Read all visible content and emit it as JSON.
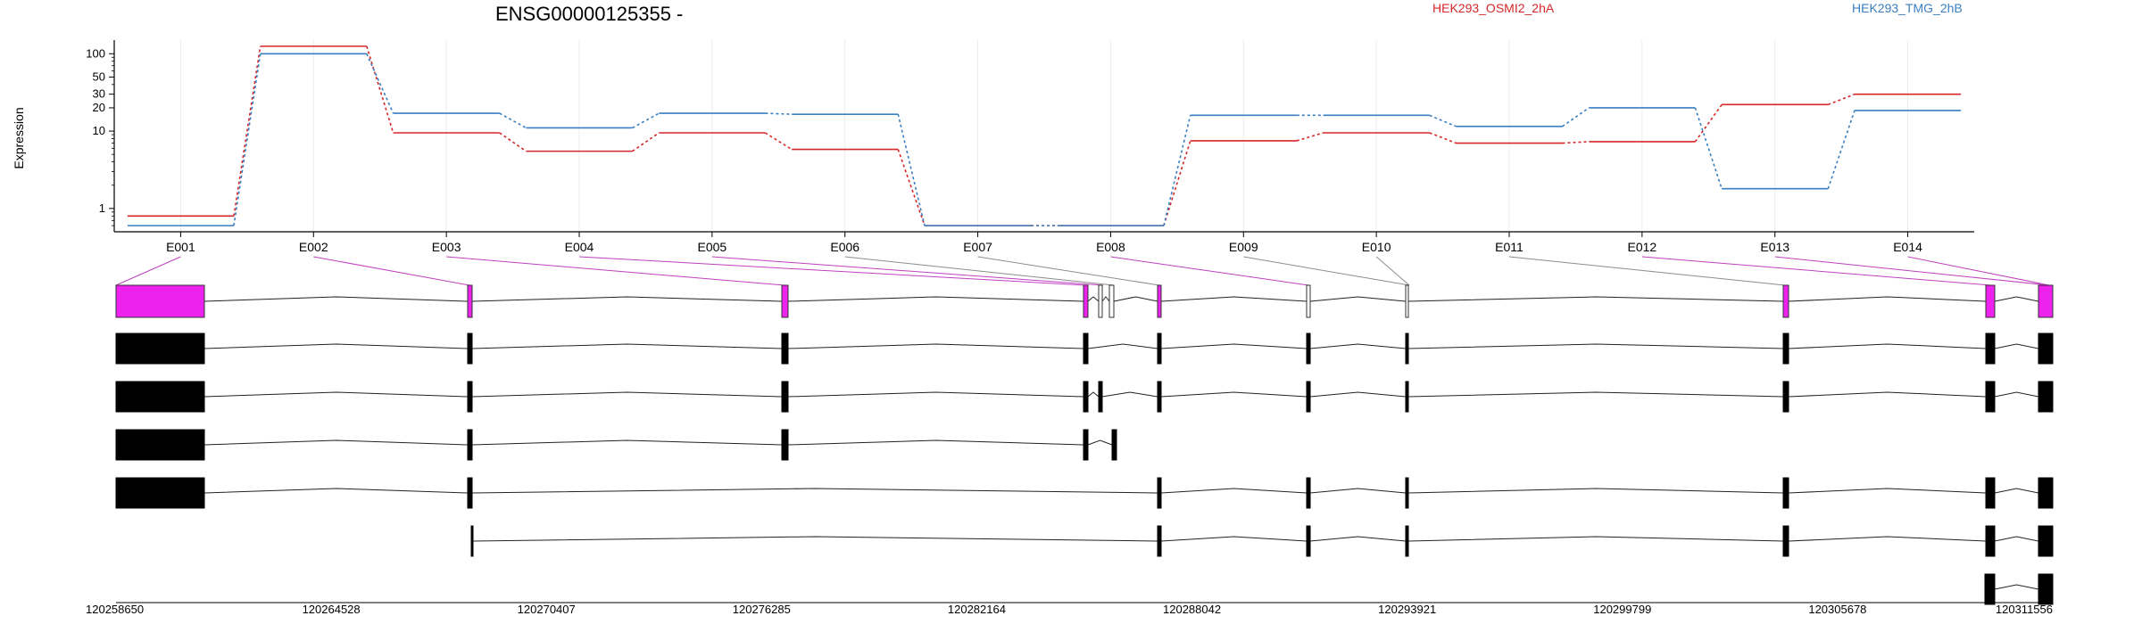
{
  "chart_data": {
    "type": "line",
    "title": "ENSG00000125355 -",
    "ylabel": "Expression",
    "yscale": "log",
    "ylim": [
      0.5,
      150
    ],
    "yticks": [
      1,
      10,
      20,
      30,
      50,
      100
    ],
    "ytick_labels": [
      "1",
      "10",
      "20",
      "30",
      "50",
      "100"
    ],
    "grid": "vertical-light",
    "legend_position": "top",
    "categories": [
      "E001",
      "E002",
      "E003",
      "E004",
      "E005",
      "E006",
      "E007",
      "E008",
      "E009",
      "E010",
      "E011",
      "E012",
      "E013",
      "E014"
    ],
    "series": [
      {
        "name": "HEK293_OSMI2_2hA",
        "color": "#d62728",
        "values": [
          0.8,
          125,
          9.5,
          5.5,
          9.5,
          5.8,
          0.6,
          0.6,
          7.5,
          9.5,
          7,
          7.3,
          22,
          30
        ]
      },
      {
        "name": "HEK293_TMG_2hB",
        "color": "#3a7fc1",
        "values": [
          0.6,
          100,
          17,
          11,
          17,
          16.5,
          0.6,
          0.6,
          16,
          16,
          11.5,
          20,
          1.8,
          18.5
        ]
      }
    ]
  },
  "gene_model": {
    "exon_color": "#ee22ee",
    "coordinates": [
      "120258650",
      "120264528",
      "120270407",
      "120276285",
      "120282164",
      "120288042",
      "120293921",
      "120299799",
      "120305678",
      "120311556"
    ]
  }
}
